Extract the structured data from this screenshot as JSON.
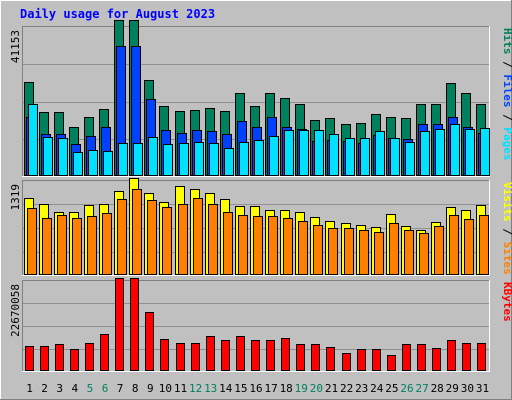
{
  "colors": {
    "background": "#C0C0C0",
    "plot": "#C0C0C0",
    "grid": "#909090",
    "title": "#0000FF",
    "hits": "#00805C",
    "files": "#0040FF",
    "pages": "#00E0FF",
    "visits": "#FFFF00",
    "sites": "#FF8000",
    "kbytes": "#FF0000",
    "weekend_label": "#00805C",
    "weekday_label": "#000000"
  },
  "chart_data": {
    "type": "bar",
    "title": "Daily usage for August 2023",
    "x": [
      1,
      2,
      3,
      4,
      5,
      6,
      7,
      8,
      9,
      10,
      11,
      12,
      13,
      14,
      15,
      16,
      17,
      18,
      19,
      20,
      21,
      22,
      23,
      24,
      25,
      26,
      27,
      28,
      29,
      30,
      31
    ],
    "x_labels": [
      "1",
      "2",
      "3",
      "4",
      "5",
      "6",
      "7",
      "8",
      "9",
      "10",
      "11",
      "12",
      "13",
      "14",
      "15",
      "16",
      "17",
      "18",
      "19",
      "20",
      "21",
      "22",
      "23",
      "24",
      "25",
      "26",
      "27",
      "28",
      "29",
      "30",
      "31"
    ],
    "weekend_days": [
      5,
      6,
      12,
      13,
      19,
      20,
      26,
      27
    ],
    "grid": true,
    "panels": [
      {
        "name": "hits-files-pages",
        "axis_max_label": "41153",
        "ymax": 41153,
        "right_label": [
          "Pages",
          "Files",
          "Hits"
        ],
        "right_label_separator": " / ",
        "series": [
          {
            "name": "Hits",
            "color_key": "hits",
            "values": [
              25900,
              17700,
              17700,
              13600,
              16300,
              18500,
              43200,
              43200,
              26400,
              19300,
              18000,
              18300,
              18800,
              17900,
              22900,
              19300,
              23000,
              21600,
              20000,
              15500,
              16000,
              14300,
              14600,
              17000,
              16400,
              16000,
              20000,
              20000,
              25700,
              22900,
              20000
            ]
          },
          {
            "name": "Files",
            "color_key": "files",
            "values": [
              16400,
              11700,
              11700,
              8900,
              11100,
              13600,
              36000,
              36000,
              21300,
              12800,
              12000,
              12600,
              12400,
              11600,
              15100,
              13600,
              16300,
              13400,
              13000,
              9700,
              10000,
              9600,
              9200,
              11300,
              10500,
              10200,
              14300,
              14300,
              16400,
              13600,
              12000
            ]
          },
          {
            "name": "Pages",
            "color_key": "pages",
            "values": [
              19800,
              10900,
              10500,
              6500,
              7200,
              7000,
              9200,
              9200,
              10800,
              8900,
              9000,
              9300,
              9200,
              7700,
              9400,
              10000,
              11000,
              12600,
              12800,
              12800,
              11500,
              10500,
              10500,
              12500,
              10500,
              9500,
              12500,
              12900,
              14300,
              13000,
              13200
            ]
          }
        ]
      },
      {
        "name": "visits-sites",
        "axis_max_label": "1319",
        "ymax": 1319,
        "right_label": [
          "Sites",
          "Visits"
        ],
        "right_label_separator": " / ",
        "series": [
          {
            "name": "Visits",
            "color_key": "visits",
            "values": [
              1080,
              1002,
              890,
              885,
              980,
              997,
              1183,
              1366,
              1150,
              1018,
              1246,
              1200,
              1156,
              1062,
              975,
              966,
              915,
              908,
              888,
              820,
              755,
              728,
              702,
              667,
              849,
              687,
              636,
              743,
              958,
              907,
              985
            ]
          },
          {
            "name": "Sites",
            "color_key": "sites",
            "values": [
              946,
              795,
              837,
              806,
              822,
              863,
              1071,
              1206,
              1059,
              956,
              999,
              1078,
              999,
              890,
              840,
              830,
              823,
              793,
              752,
              695,
              660,
              666,
              637,
              603,
              731,
              637,
              590,
              682,
              845,
              785,
              840
            ]
          }
        ]
      },
      {
        "name": "kbytes",
        "axis_max_label": "22670058",
        "ymax": 22670058,
        "right_label": [
          "KBytes"
        ],
        "right_label_separator": "",
        "series": [
          {
            "name": "KBytes",
            "color_key": "kbytes",
            "values": [
              6340000,
              6340000,
              6700000,
              5440000,
              7150000,
              9330000,
              23300000,
              23300000,
              14900000,
              8140000,
              7150000,
              7150000,
              8860000,
              7880000,
              8860000,
              7700000,
              7700000,
              8320000,
              6850000,
              6850000,
              6040000,
              4600000,
              5600000,
              5600000,
              3930000,
              6700000,
              6700000,
              5740000,
              7700000,
              6950000,
              6950000
            ]
          }
        ]
      }
    ]
  }
}
